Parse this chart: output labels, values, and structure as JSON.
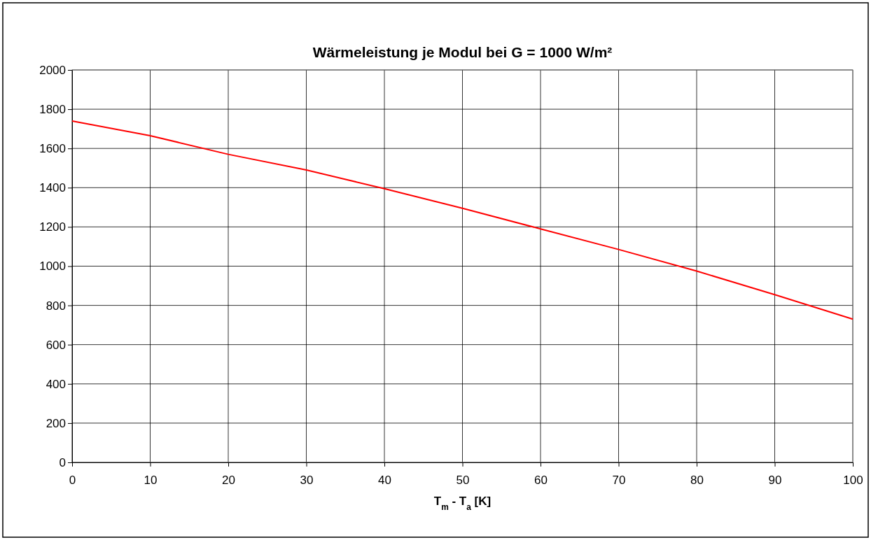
{
  "chart_data": {
    "type": "line",
    "title": "Wärmeleistung je Modul bei G = 1000 W/m²",
    "xlabel": "T$_{m}$ - T$_{a}$ [K]",
    "x": [
      0,
      10,
      20,
      30,
      40,
      50,
      60,
      70,
      80,
      90,
      100
    ],
    "series": [
      {
        "color": "#ff0000",
        "values": [
          1740,
          1665,
          1570,
          1490,
          1395,
          1295,
          1190,
          1085,
          975,
          855,
          730
        ]
      }
    ],
    "xlim": [
      0,
      100
    ],
    "xticks": [
      0,
      10,
      20,
      30,
      40,
      50,
      60,
      70,
      80,
      90,
      100
    ],
    "ylim": [
      0,
      2000
    ],
    "yticks": [
      0,
      200,
      400,
      600,
      800,
      1000,
      1200,
      1400,
      1600,
      1800,
      2000
    ],
    "grid": true,
    "marker": "none",
    "line_style": "solid"
  }
}
